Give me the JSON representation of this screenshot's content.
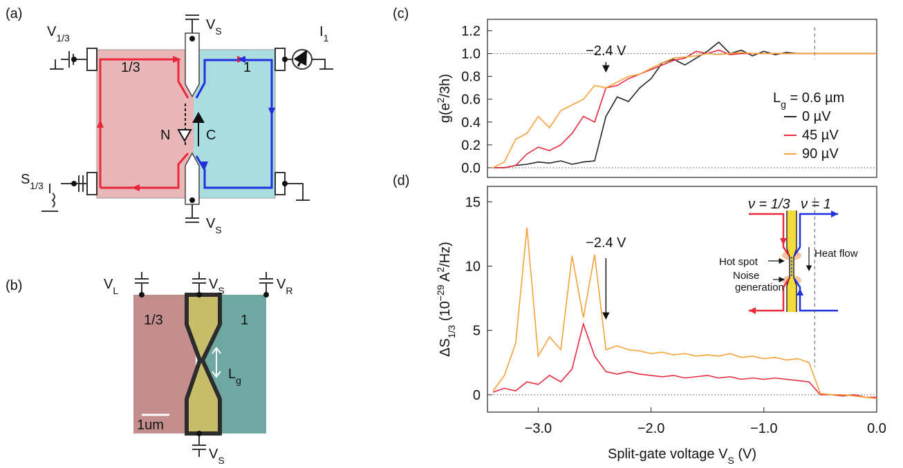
{
  "chart_data": [
    {
      "type": "line",
      "panel_label": "(c)",
      "y_label": [
        {
          "text": "g(e"
        },
        {
          "text": "2",
          "shift": "super"
        },
        {
          "text": "/3h)"
        }
      ],
      "x": [
        -3.4,
        -3.3,
        -3.2,
        -3.1,
        -3.0,
        -2.9,
        -2.8,
        -2.7,
        -2.6,
        -2.5,
        -2.4,
        -2.3,
        -2.2,
        -2.1,
        -2.0,
        -1.9,
        -1.8,
        -1.7,
        -1.6,
        -1.5,
        -1.4,
        -1.3,
        -1.2,
        -1.1,
        -1.0,
        -0.9,
        -0.8,
        -0.7,
        -0.6,
        -0.5,
        -0.4,
        -0.3,
        -0.2,
        -0.1,
        0.0
      ],
      "xlim": [
        -3.45,
        0
      ],
      "ylim": [
        -0.085,
        1.3
      ],
      "yticks": [
        {
          "value": 0,
          "label": "0.0"
        },
        {
          "value": 0.2,
          "label": "0.2"
        },
        {
          "value": 0.4,
          "label": "0.4"
        },
        {
          "value": 0.6,
          "label": "0.6"
        },
        {
          "value": 0.8,
          "label": "0.8"
        },
        {
          "value": 1,
          "label": "1.0"
        },
        {
          "value": 1.2,
          "label": "1.2"
        }
      ],
      "hlines": [
        1,
        0
      ],
      "vlines": [
        -0.55
      ],
      "annotations": [
        {
          "text": "−2.4 V",
          "x": -2.4
        }
      ],
      "legend": {
        "title": [
          {
            "text": "L"
          },
          {
            "text": "g",
            "shift": "sub"
          },
          {
            "text": " = 0.6 µm"
          }
        ],
        "position": "right"
      },
      "series": [
        {
          "name": "0 µV",
          "color": "#222222",
          "values": [
            0,
            0,
            0.02,
            0.03,
            0.05,
            0.04,
            0.06,
            0.03,
            0.05,
            0.06,
            0.45,
            0.62,
            0.58,
            0.7,
            0.78,
            0.92,
            0.95,
            0.9,
            0.96,
            1.02,
            1.1,
            1.0,
            1.03,
            0.98,
            1.02,
            0.99,
            1.01,
            1.0,
            1.0,
            1.0,
            1.0,
            1.0,
            1.0,
            1.0,
            1.0
          ]
        },
        {
          "name": "45 µV",
          "color": "#e8283a",
          "values": [
            0,
            0,
            0.02,
            0.12,
            0.18,
            0.15,
            0.2,
            0.3,
            0.45,
            0.4,
            0.7,
            0.72,
            0.78,
            0.82,
            0.86,
            0.9,
            0.94,
            0.96,
            1.02,
            1.0,
            1.03,
            0.99,
            1.0,
            1.0,
            1.0,
            1.0,
            1.0,
            1.0,
            1.0,
            1.0,
            1.0,
            1.0,
            1.0,
            1.0,
            1.0
          ]
        },
        {
          "name": "90 µV",
          "color": "#f7a13a",
          "values": [
            0,
            0.05,
            0.25,
            0.3,
            0.45,
            0.35,
            0.5,
            0.55,
            0.6,
            0.72,
            0.7,
            0.75,
            0.8,
            0.82,
            0.87,
            0.92,
            0.96,
            0.97,
            0.98,
            1.0,
            0.99,
            1.0,
            1.01,
            1.0,
            1.0,
            1.0,
            1.0,
            1.0,
            1.0,
            1.0,
            1.0,
            1.0,
            1.0,
            1.0,
            1.0
          ]
        }
      ]
    },
    {
      "type": "line",
      "panel_label": "(d)",
      "y_label": [
        {
          "text": "ΔS"
        },
        {
          "text": "1/3",
          "shift": "sub"
        },
        {
          "text": " (10"
        },
        {
          "text": "−29",
          "shift": "super"
        },
        {
          "text": " A"
        },
        {
          "text": "2",
          "shift": "super"
        },
        {
          "text": "/Hz)"
        }
      ],
      "x_label": [
        {
          "text": "Split-gate voltage V"
        },
        {
          "text": "S",
          "shift": "sub"
        },
        {
          "text": " (V)"
        }
      ],
      "x": [
        -3.4,
        -3.3,
        -3.2,
        -3.1,
        -3.0,
        -2.9,
        -2.8,
        -2.7,
        -2.6,
        -2.5,
        -2.4,
        -2.3,
        -2.2,
        -2.1,
        -2.0,
        -1.9,
        -1.8,
        -1.7,
        -1.6,
        -1.5,
        -1.4,
        -1.3,
        -1.2,
        -1.1,
        -1.0,
        -0.9,
        -0.8,
        -0.7,
        -0.6,
        -0.5,
        -0.4,
        -0.3,
        -0.2,
        -0.1,
        0.0
      ],
      "xlim": [
        -3.45,
        0
      ],
      "xticks": [
        {
          "value": -3,
          "label": "−3.0"
        },
        {
          "value": -2,
          "label": "−2.0"
        },
        {
          "value": -1,
          "label": "−1.0"
        },
        {
          "value": 0,
          "label": "0.0"
        }
      ],
      "ylim": [
        -1.35,
        16.2
      ],
      "yticks": [
        0,
        5,
        10,
        15
      ],
      "hlines": [
        0
      ],
      "vlines": [
        -0.55
      ],
      "annotations": [
        {
          "text": "−2.4 V",
          "x": -2.4
        }
      ],
      "inset": {
        "nu_third": "ν = 1/3",
        "nu_one": "ν = 1",
        "hot_spot": "Hot spot",
        "heat_flow": "Heat flow",
        "noise": [
          "Noise",
          "generation"
        ]
      },
      "series": [
        {
          "color": "#e8283a",
          "values": [
            0.2,
            0.5,
            0.3,
            1.0,
            0.8,
            1.5,
            1.0,
            2.0,
            5.5,
            3.0,
            1.8,
            1.6,
            1.8,
            1.6,
            1.5,
            1.4,
            1.5,
            1.3,
            1.4,
            1.5,
            1.3,
            1.4,
            1.2,
            1.3,
            1.2,
            1.3,
            1.2,
            1.1,
            1.0,
            0.0,
            0.0,
            -0.1,
            0.0,
            -0.2,
            -0.2
          ]
        },
        {
          "color": "#f7a13a",
          "values": [
            0.3,
            1.5,
            4.0,
            13.0,
            3.0,
            4.5,
            3.5,
            10.8,
            6.0,
            10.9,
            3.5,
            3.8,
            3.5,
            3.4,
            3.2,
            3.3,
            3.1,
            3.2,
            3.0,
            3.1,
            3.0,
            3.2,
            2.9,
            3.0,
            2.8,
            2.9,
            2.7,
            2.8,
            2.5,
            0.1,
            0.0,
            0.0,
            -0.1,
            -0.2,
            -0.3
          ]
        }
      ]
    }
  ],
  "diagram": {
    "a": {
      "panel_label": "(a)",
      "v13": [
        {
          "text": "V"
        },
        {
          "text": "1/3",
          "shift": "sub"
        }
      ],
      "third": "1/3",
      "one": "1",
      "vs_top": [
        {
          "text": "V"
        },
        {
          "text": "S",
          "shift": "sub"
        }
      ],
      "vs_bottom": [
        {
          "text": "V"
        },
        {
          "text": "S",
          "shift": "sub"
        }
      ],
      "i1": [
        {
          "text": "I"
        },
        {
          "text": "1",
          "shift": "sub"
        }
      ],
      "n": "N",
      "c": "C",
      "s13": [
        {
          "text": "S"
        },
        {
          "text": "1/3",
          "shift": "sub"
        }
      ]
    },
    "b": {
      "panel_label": "(b)",
      "vl": [
        {
          "text": "V"
        },
        {
          "text": "L",
          "shift": "sub"
        }
      ],
      "vs_top": [
        {
          "text": "V"
        },
        {
          "text": "S",
          "shift": "sub"
        }
      ],
      "vr": [
        {
          "text": "V"
        },
        {
          "text": "R",
          "shift": "sub"
        }
      ],
      "third": "1/3",
      "one": "1",
      "lg": [
        {
          "text": "L"
        },
        {
          "text": "g",
          "shift": "sub"
        }
      ],
      "scale": "1um",
      "vs_bottom": [
        {
          "text": "V"
        },
        {
          "text": "S",
          "shift": "sub"
        }
      ]
    }
  }
}
